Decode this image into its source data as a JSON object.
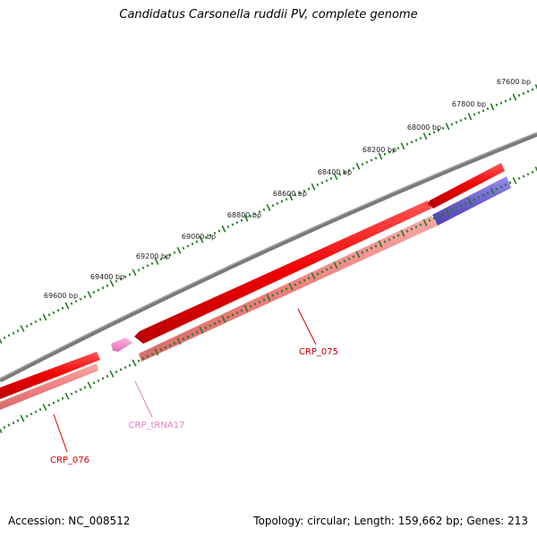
{
  "title": "Candidatus Carsonella ruddii PV, complete genome",
  "footer": {
    "accession": "Accession: NC_008512",
    "summary": "Topology: circular; Length: 159,662 bp; Genes: 213"
  },
  "ruler": {
    "color": "#1e7d1e",
    "labels": [
      "67600 bp",
      "67800 bp",
      "68000 bp",
      "68200 bp",
      "68400 bp",
      "68600 bp",
      "68800 bp",
      "69000 bp",
      "69200 bp",
      "69400 bp",
      "69600 bp"
    ]
  },
  "features": [
    {
      "label": "CRP_075",
      "color": "#ee0000",
      "label_color": "#cc0000"
    },
    {
      "label": "CRP_076",
      "color": "#ee0000",
      "label_color": "#cc0000"
    },
    {
      "label": "CRP_tRNA17",
      "color": "#f080c8",
      "label_color": "#e67fbf"
    }
  ],
  "colors": {
    "backbone": "#808080",
    "cds": "#ee0000",
    "cds_light": "#f08080",
    "trna": "#f080c8",
    "other": "#7060d0"
  }
}
